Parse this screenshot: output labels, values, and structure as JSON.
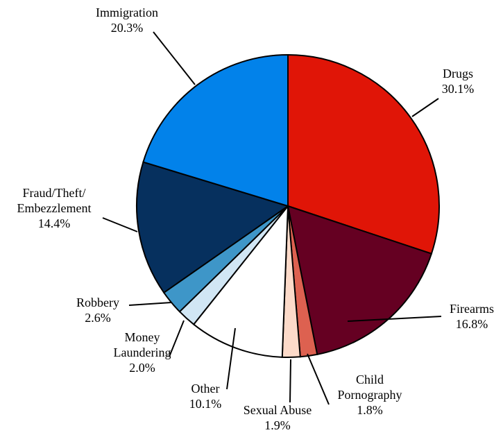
{
  "chart_data": {
    "type": "pie",
    "title": "",
    "start_angle_deg": 0,
    "direction": "clockwise",
    "slices": [
      {
        "label": [
          "Drugs"
        ],
        "value": 30.1,
        "value_label": "30.1%",
        "color": "#E01507"
      },
      {
        "label": [
          "Firearms"
        ],
        "value": 16.8,
        "value_label": "16.8%",
        "color": "#650022"
      },
      {
        "label": [
          "Child",
          "Pornography"
        ],
        "value": 1.8,
        "value_label": "1.8%",
        "color": "#DD6150"
      },
      {
        "label": [
          "Sexual Abuse"
        ],
        "value": 1.9,
        "value_label": "1.9%",
        "color": "#FCDAC9"
      },
      {
        "label": [
          "Other"
        ],
        "value": 10.1,
        "value_label": "10.1%",
        "color": "#FFFFFF"
      },
      {
        "label": [
          "Money",
          "Laundering"
        ],
        "value": 2.0,
        "value_label": "2.0%",
        "color": "#D1E6F4"
      },
      {
        "label": [
          "Robbery"
        ],
        "value": 2.6,
        "value_label": "2.6%",
        "color": "#3E96C8"
      },
      {
        "label": [
          "Fraud/Theft/",
          "Embezzlement"
        ],
        "value": 14.4,
        "value_label": "14.4%",
        "color": "#06305E"
      },
      {
        "label": [
          "Immigration"
        ],
        "value": 20.3,
        "value_label": "20.3%",
        "color": "#0282EA"
      }
    ]
  }
}
